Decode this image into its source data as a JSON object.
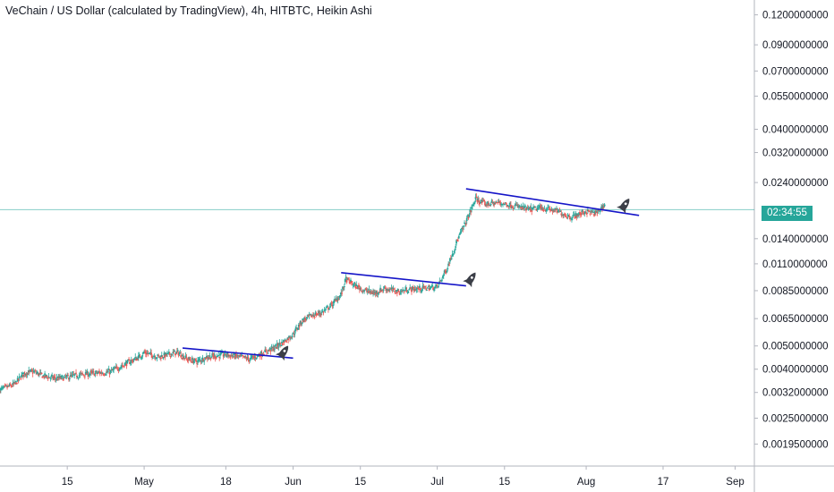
{
  "chart_data": {
    "type": "candlestick",
    "title": "VeChain / US Dollar (calculated by TradingView), 4h, HITBTC, Heikin Ashi",
    "y_scale": "log",
    "ylim": [
      0.00175,
      0.127
    ],
    "y_ticks": [
      "0.1200000000",
      "0.0900000000",
      "0.0700000000",
      "0.0550000000",
      "0.0400000000",
      "0.0320000000",
      "0.0240000000",
      "0.0140000000",
      "0.0110000000",
      "0.0085000000",
      "0.0065000000",
      "0.0050000000",
      "0.0040000000",
      "0.0032000000",
      "0.0025000000",
      "0.0019500000"
    ],
    "y_tick_values": [
      0.12,
      0.09,
      0.07,
      0.055,
      0.04,
      0.032,
      0.024,
      0.014,
      0.011,
      0.0085,
      0.0065,
      0.005,
      0.004,
      0.0032,
      0.0025,
      0.00195
    ],
    "x_ticks": [
      "15",
      "May",
      "18",
      "Jun",
      "15",
      "Jul",
      "15",
      "Aug",
      "17",
      "Sep"
    ],
    "x_tick_dates": [
      "2020-04-15",
      "2020-05-01",
      "2020-05-18",
      "2020-06-01",
      "2020-06-15",
      "2020-07-01",
      "2020-07-15",
      "2020-08-01",
      "2020-08-17",
      "2020-09-01"
    ],
    "xlim": [
      "2020-04-01",
      "2020-09-05"
    ],
    "current_price_countdown": "02:34:55",
    "price_line": 0.0185,
    "series": [
      {
        "key": "price",
        "values": [
          [
            "2020-04-01",
            0.00328
          ],
          [
            "2020-04-04",
            0.00345
          ],
          [
            "2020-04-06",
            0.00385
          ],
          [
            "2020-04-08",
            0.0039
          ],
          [
            "2020-04-10",
            0.00375
          ],
          [
            "2020-04-13",
            0.00365
          ],
          [
            "2020-04-15",
            0.0037
          ],
          [
            "2020-04-18",
            0.0038
          ],
          [
            "2020-04-21",
            0.00385
          ],
          [
            "2020-04-24",
            0.0039
          ],
          [
            "2020-04-27",
            0.0042
          ],
          [
            "2020-04-30",
            0.0045
          ],
          [
            "2020-05-01",
            0.0047
          ],
          [
            "2020-05-04",
            0.0045
          ],
          [
            "2020-05-06",
            0.0046
          ],
          [
            "2020-05-08",
            0.0047
          ],
          [
            "2020-05-10",
            0.0044
          ],
          [
            "2020-05-12",
            0.0043
          ],
          [
            "2020-05-14",
            0.0045
          ],
          [
            "2020-05-18",
            0.0046
          ],
          [
            "2020-05-21",
            0.0045
          ],
          [
            "2020-05-23",
            0.0044
          ],
          [
            "2020-05-26",
            0.0047
          ],
          [
            "2020-05-28",
            0.0049
          ],
          [
            "2020-05-30",
            0.0052
          ],
          [
            "2020-06-01",
            0.0056
          ],
          [
            "2020-06-03",
            0.0064
          ],
          [
            "2020-06-05",
            0.0067
          ],
          [
            "2020-06-07",
            0.0069
          ],
          [
            "2020-06-09",
            0.0074
          ],
          [
            "2020-06-11",
            0.0082
          ],
          [
            "2020-06-12",
            0.0095
          ],
          [
            "2020-06-14",
            0.0089
          ],
          [
            "2020-06-16",
            0.0085
          ],
          [
            "2020-06-18",
            0.0083
          ],
          [
            "2020-06-20",
            0.0087
          ],
          [
            "2020-06-23",
            0.0084
          ],
          [
            "2020-06-25",
            0.0086
          ],
          [
            "2020-06-28",
            0.0087
          ],
          [
            "2020-07-01",
            0.0088
          ],
          [
            "2020-07-03",
            0.0105
          ],
          [
            "2020-07-05",
            0.0135
          ],
          [
            "2020-07-07",
            0.0165
          ],
          [
            "2020-07-09",
            0.0205
          ],
          [
            "2020-07-11",
            0.0195
          ],
          [
            "2020-07-14",
            0.0198
          ],
          [
            "2020-07-17",
            0.0192
          ],
          [
            "2020-07-20",
            0.0185
          ],
          [
            "2020-07-23",
            0.0188
          ],
          [
            "2020-07-26",
            0.0182
          ],
          [
            "2020-07-29",
            0.0172
          ],
          [
            "2020-08-01",
            0.0182
          ],
          [
            "2020-08-03",
            0.0178
          ],
          [
            "2020-08-05",
            0.0195
          ]
        ]
      }
    ],
    "annotations": [
      {
        "type": "trendline",
        "color": "#1515c8",
        "from": [
          "2020-05-09",
          0.0049
        ],
        "to": [
          "2020-06-01",
          0.00445
        ]
      },
      {
        "type": "trendline",
        "color": "#1515c8",
        "from": [
          "2020-06-11",
          0.0101
        ],
        "to": [
          "2020-07-07",
          0.0089
        ]
      },
      {
        "type": "trendline",
        "color": "#1515c8",
        "from": [
          "2020-07-07",
          0.0226
        ],
        "to": [
          "2020-08-12",
          0.0175
        ]
      },
      {
        "type": "icon",
        "icon": "rocket-icon",
        "at": [
          "2020-05-30",
          0.0047
        ]
      },
      {
        "type": "icon",
        "icon": "rocket-icon",
        "at": [
          "2020-07-08",
          0.0095
        ]
      },
      {
        "type": "icon",
        "icon": "rocket-icon",
        "at": [
          "2020-08-09",
          0.0193
        ]
      }
    ],
    "colors": {
      "up": "#26a69a",
      "down": "#ef5350",
      "trendline": "#1515c8",
      "price_line": "#26a69a"
    }
  }
}
